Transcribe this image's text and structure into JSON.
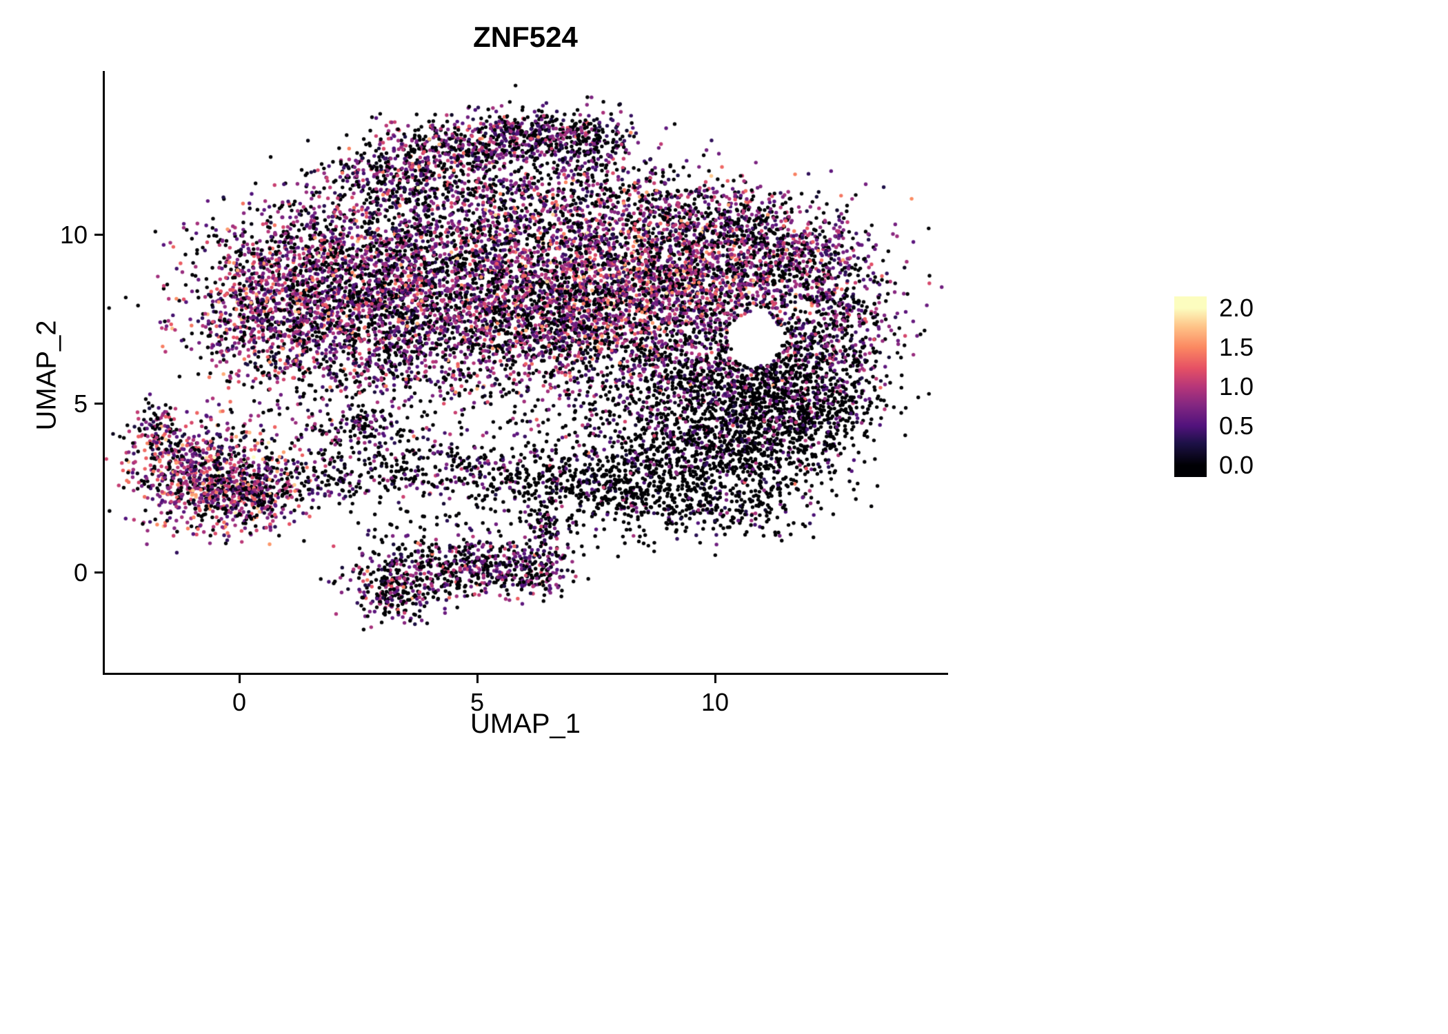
{
  "title": "ZNF524",
  "axes": {
    "x_label": "UMAP_1",
    "y_label": "UMAP_2"
  },
  "legend": {
    "ticks": [
      {
        "value": 2.0,
        "label": "2.0"
      },
      {
        "value": 1.5,
        "label": "1.5"
      },
      {
        "value": 1.0,
        "label": "1.0"
      },
      {
        "value": 0.5,
        "label": "0.5"
      },
      {
        "value": 0.0,
        "label": "0.0"
      }
    ]
  },
  "chart_data": {
    "type": "scatter",
    "title": "ZNF524",
    "xlabel": "UMAP_1",
    "ylabel": "UMAP_2",
    "xlim": [
      -2.85,
      14.85
    ],
    "ylim": [
      -3.0,
      14.8
    ],
    "grid": false,
    "legend_position": "right",
    "x_ticks": [
      {
        "value": 0,
        "label": "0"
      },
      {
        "value": 5,
        "label": "5"
      },
      {
        "value": 10,
        "label": "10"
      }
    ],
    "y_ticks": [
      {
        "value": 0,
        "label": "0"
      },
      {
        "value": 5,
        "label": "5"
      },
      {
        "value": 10,
        "label": "10"
      }
    ],
    "color_scale": {
      "min": 0.0,
      "max": 2.0,
      "label_values": [
        2.0,
        1.5,
        1.0,
        0.5,
        0.0
      ]
    },
    "colormap": {
      "name": "magma",
      "stops": [
        {
          "t": 0.0,
          "color": "#000004"
        },
        {
          "t": 0.14,
          "color": "#1D1147"
        },
        {
          "t": 0.25,
          "color": "#51127C"
        },
        {
          "t": 0.38,
          "color": "#822681"
        },
        {
          "t": 0.5,
          "color": "#B63679"
        },
        {
          "t": 0.62,
          "color": "#E65164"
        },
        {
          "t": 0.75,
          "color": "#FB8861"
        },
        {
          "t": 0.88,
          "color": "#FEC287"
        },
        {
          "t": 1.0,
          "color": "#FCFDBF"
        }
      ]
    },
    "seed": 42,
    "point_radius_px": 2.7,
    "holes": [
      {
        "cx": 10.85,
        "cy": 6.9,
        "rx": 0.55,
        "ry": 0.8
      }
    ],
    "clusters": [
      {
        "cx": 0.6,
        "cy": 7.8,
        "sx": 0.95,
        "sy": 1.15,
        "n": 900,
        "p0": 0.3,
        "mean": 0.8,
        "sd": 0.38
      },
      {
        "cx": 2.2,
        "cy": 9.2,
        "sx": 1.2,
        "sy": 1.1,
        "n": 1000,
        "p0": 0.35,
        "mean": 0.72,
        "sd": 0.36
      },
      {
        "cx": 3.0,
        "cy": 7.0,
        "sx": 1.25,
        "sy": 1.05,
        "n": 850,
        "p0": 0.4,
        "mean": 0.7,
        "sd": 0.36
      },
      {
        "cx": 4.8,
        "cy": 8.8,
        "sx": 1.4,
        "sy": 1.3,
        "n": 1200,
        "p0": 0.38,
        "mean": 0.75,
        "sd": 0.38
      },
      {
        "cx": 6.5,
        "cy": 7.2,
        "sx": 1.35,
        "sy": 1.1,
        "n": 950,
        "p0": 0.4,
        "mean": 0.8,
        "sd": 0.4
      },
      {
        "cx": 7.8,
        "cy": 9.0,
        "sx": 1.5,
        "sy": 1.2,
        "n": 1300,
        "p0": 0.3,
        "mean": 0.9,
        "sd": 0.42
      },
      {
        "cx": 9.8,
        "cy": 8.3,
        "sx": 1.2,
        "sy": 1.0,
        "n": 800,
        "p0": 0.35,
        "mean": 0.82,
        "sd": 0.4
      },
      {
        "cx": 9.3,
        "cy": 6.0,
        "sx": 1.3,
        "sy": 0.95,
        "n": 700,
        "p0": 0.62,
        "mean": 0.6,
        "sd": 0.35
      },
      {
        "cx": 11.3,
        "cy": 5.6,
        "sx": 1.0,
        "sy": 0.9,
        "n": 620,
        "p0": 0.72,
        "mean": 0.55,
        "sd": 0.32
      },
      {
        "cx": 12.6,
        "cy": 7.2,
        "sx": 0.65,
        "sy": 1.1,
        "n": 460,
        "p0": 0.45,
        "mean": 0.7,
        "sd": 0.35
      },
      {
        "cx": 11.4,
        "cy": 9.2,
        "sx": 1.05,
        "sy": 0.8,
        "n": 460,
        "p0": 0.4,
        "mean": 0.75,
        "sd": 0.38
      },
      {
        "cx": 3.4,
        "cy": 11.7,
        "sx": 0.75,
        "sy": 0.5,
        "n": 300,
        "p0": 0.45,
        "mean": 0.65,
        "sd": 0.35
      },
      {
        "cx": 4.8,
        "cy": 12.6,
        "sx": 1.0,
        "sy": 0.45,
        "n": 420,
        "p0": 0.45,
        "mean": 0.65,
        "sd": 0.35
      },
      {
        "cx": 6.3,
        "cy": 13.0,
        "sx": 0.8,
        "sy": 0.4,
        "n": 320,
        "p0": 0.45,
        "mean": 0.62,
        "sd": 0.33
      },
      {
        "cx": 7.4,
        "cy": 12.5,
        "sx": 0.45,
        "sy": 0.5,
        "n": 150,
        "p0": 0.5,
        "mean": 0.6,
        "sd": 0.32
      },
      {
        "cx": 5.5,
        "cy": 11.0,
        "sx": 1.3,
        "sy": 0.8,
        "n": 360,
        "p0": 0.45,
        "mean": 0.7,
        "sd": 0.35
      },
      {
        "cx": 8.6,
        "cy": 10.9,
        "sx": 1.3,
        "sy": 0.75,
        "n": 380,
        "p0": 0.4,
        "mean": 0.75,
        "sd": 0.36
      },
      {
        "cx": 10.4,
        "cy": 10.3,
        "sx": 0.8,
        "sy": 0.6,
        "n": 250,
        "p0": 0.4,
        "mean": 0.72,
        "sd": 0.35
      },
      {
        "cx": 12.0,
        "cy": 9.6,
        "sx": 0.5,
        "sy": 0.4,
        "n": 90,
        "p0": 0.45,
        "mean": 0.7,
        "sd": 0.32
      },
      {
        "cx": 9.0,
        "cy": 3.6,
        "sx": 1.25,
        "sy": 0.95,
        "n": 520,
        "p0": 0.8,
        "mean": 0.5,
        "sd": 0.3
      },
      {
        "cx": 10.8,
        "cy": 3.6,
        "sx": 1.0,
        "sy": 1.0,
        "n": 620,
        "p0": 0.8,
        "mean": 0.5,
        "sd": 0.3
      },
      {
        "cx": 11.9,
        "cy": 4.9,
        "sx": 0.8,
        "sy": 0.7,
        "n": 360,
        "p0": 0.75,
        "mean": 0.52,
        "sd": 0.3
      },
      {
        "cx": 8.0,
        "cy": 2.4,
        "sx": 1.0,
        "sy": 0.6,
        "n": 220,
        "p0": 0.8,
        "mean": 0.5,
        "sd": 0.3
      },
      {
        "cx": 9.8,
        "cy": 1.9,
        "sx": 0.85,
        "sy": 0.5,
        "n": 200,
        "p0": 0.8,
        "mean": 0.5,
        "sd": 0.3
      },
      {
        "cx": -0.7,
        "cy": 2.9,
        "sx": 0.8,
        "sy": 0.78,
        "n": 850,
        "p0": 0.26,
        "mean": 0.85,
        "sd": 0.45
      },
      {
        "cx": 0.3,
        "cy": 2.2,
        "sx": 0.5,
        "sy": 0.5,
        "n": 260,
        "p0": 0.3,
        "mean": 0.8,
        "sd": 0.42
      },
      {
        "cx": -1.75,
        "cy": 4.3,
        "sx": 0.22,
        "sy": 0.42,
        "n": 80,
        "p0": 0.35,
        "mean": 0.7,
        "sd": 0.35
      },
      {
        "cx": 3.0,
        "cy": 3.3,
        "sx": 1.0,
        "sy": 0.6,
        "n": 200,
        "p0": 0.7,
        "mean": 0.55,
        "sd": 0.3
      },
      {
        "cx": 5.3,
        "cy": 3.0,
        "sx": 1.3,
        "sy": 0.55,
        "n": 260,
        "p0": 0.65,
        "mean": 0.6,
        "sd": 0.3
      },
      {
        "cx": 7.0,
        "cy": 2.7,
        "sx": 0.9,
        "sy": 0.45,
        "n": 150,
        "p0": 0.7,
        "mean": 0.55,
        "sd": 0.3
      },
      {
        "cx": 1.6,
        "cy": 2.6,
        "sx": 0.6,
        "sy": 0.35,
        "n": 90,
        "p0": 0.6,
        "mean": 0.6,
        "sd": 0.3
      },
      {
        "cx": 2.4,
        "cy": 4.3,
        "sx": 0.5,
        "sy": 0.4,
        "n": 110,
        "p0": 0.5,
        "mean": 0.65,
        "sd": 0.32
      },
      {
        "cx": 4.4,
        "cy": 0.1,
        "sx": 0.9,
        "sy": 0.5,
        "n": 380,
        "p0": 0.5,
        "mean": 0.68,
        "sd": 0.36
      },
      {
        "cx": 3.3,
        "cy": -0.6,
        "sx": 0.4,
        "sy": 0.5,
        "n": 220,
        "p0": 0.5,
        "mean": 0.7,
        "sd": 0.36
      },
      {
        "cx": 5.7,
        "cy": 0.2,
        "sx": 0.8,
        "sy": 0.45,
        "n": 160,
        "p0": 0.55,
        "mean": 0.62,
        "sd": 0.32
      },
      {
        "cx": 6.3,
        "cy": -0.1,
        "sx": 0.3,
        "sy": 0.35,
        "n": 80,
        "p0": 0.5,
        "mean": 0.7,
        "sd": 0.34
      },
      {
        "cx": 6.4,
        "cy": 1.2,
        "sx": 0.25,
        "sy": 0.6,
        "n": 70,
        "p0": 0.55,
        "mean": 0.6,
        "sd": 0.3
      },
      {
        "cx": 5.0,
        "cy": 1.6,
        "sx": 1.5,
        "sy": 0.5,
        "n": 60,
        "p0": 0.7,
        "mean": 0.5,
        "sd": 0.3
      },
      {
        "cx": 6.5,
        "cy": 8.0,
        "sx": 3.5,
        "sy": 2.5,
        "n": 420,
        "p0": 0.5,
        "mean": 0.6,
        "sd": 0.35
      }
    ]
  }
}
